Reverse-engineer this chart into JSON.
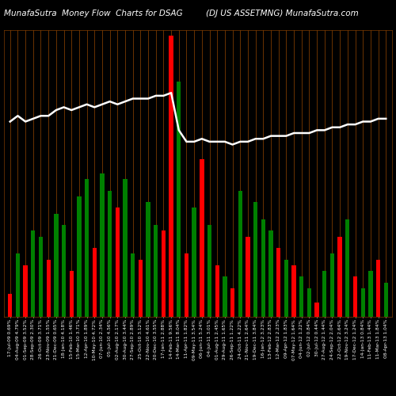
{
  "title_left": "MunafaSutra  Money Flow  Charts for DSAG",
  "title_right": "(DJ US ASSETMNG) MunafaSutra.com",
  "background_color": "#000000",
  "grid_color": "#7B3A00",
  "bar_colors": [
    "red",
    "green",
    "red",
    "green",
    "green",
    "red",
    "green",
    "green",
    "red",
    "green",
    "green",
    "red",
    "green",
    "green",
    "red",
    "green",
    "green",
    "red",
    "green",
    "green",
    "red",
    "red",
    "green",
    "red",
    "green",
    "red",
    "green",
    "red",
    "green",
    "red",
    "green",
    "red",
    "green",
    "green",
    "green",
    "red",
    "green",
    "red",
    "green",
    "green",
    "red",
    "green",
    "green",
    "red",
    "green",
    "red",
    "green",
    "green",
    "red",
    "green"
  ],
  "bar_values": [
    8,
    22,
    18,
    30,
    28,
    20,
    36,
    32,
    16,
    42,
    48,
    24,
    50,
    44,
    38,
    48,
    22,
    20,
    40,
    32,
    30,
    98,
    82,
    22,
    38,
    55,
    32,
    18,
    14,
    10,
    44,
    28,
    40,
    34,
    30,
    24,
    20,
    18,
    14,
    10,
    5,
    16,
    22,
    28,
    34,
    14,
    10,
    16,
    20,
    12
  ],
  "line_values": [
    68,
    70,
    68,
    69,
    70,
    70,
    72,
    73,
    72,
    73,
    74,
    73,
    74,
    75,
    74,
    75,
    76,
    76,
    76,
    77,
    77,
    78,
    65,
    61,
    61,
    62,
    61,
    61,
    61,
    60,
    61,
    61,
    62,
    62,
    63,
    63,
    63,
    64,
    64,
    64,
    65,
    65,
    66,
    66,
    67,
    67,
    68,
    68,
    69,
    69
  ],
  "xlabels": [
    "17-Jul-09 0.69%",
    "04-Aug-09 4.79%",
    "01-Sep-09 3.52%",
    "28-Sep-09 2.30%",
    "26-Oct-09 3.71%",
    "23-Nov-09 1.55%",
    "21-Dec-09 0.65%",
    "18-Jan-10 4.18%",
    "15-Feb-10 1.46%",
    "15-Mar-10 3.71%",
    "12-Apr-10 1.89%",
    "10-May-10 4.72%",
    "07-Jun-10 2.34%",
    "05-Jul-10 4.56%",
    "02-Aug-10 2.17%",
    "30-Aug-10 3.44%",
    "27-Sep-10 2.89%",
    "25-Oct-10 3.12%",
    "22-Nov-10 4.61%",
    "20-Dec-10 3.55%",
    "17-Jan-11 2.88%",
    "14-Feb-11 9.56%",
    "14-Mar-11 8.04%",
    "11-Apr-11 1.82%",
    "09-May-11 3.54%",
    "06-Jun-11 5.24%",
    "04-Jul-11 3.01%",
    "01-Aug-11 2.45%",
    "29-Aug-11 1.65%",
    "26-Sep-11 1.22%",
    "24-Oct-11 4.22%",
    "21-Nov-11 2.64%",
    "19-Dec-11 3.84%",
    "16-Jan-12 3.23%",
    "13-Feb-12 2.83%",
    "12-Mar-12 2.23%",
    "09-Apr-12 1.83%",
    "07-May-12 1.64%",
    "04-Jun-12 1.22%",
    "02-Jul-12 0.84%",
    "30-Jul-12 0.44%",
    "27-Aug-12 1.44%",
    "24-Sep-12 2.04%",
    "22-Oct-12 2.64%",
    "19-Nov-12 3.24%",
    "17-Dec-12 1.24%",
    "14-Jan-13 0.84%",
    "11-Feb-13 1.44%",
    "11-Mar-13 1.84%",
    "08-Apr-13 1.04%"
  ],
  "ylim": [
    0,
    100
  ],
  "title_fontsize": 7.5,
  "label_fontsize": 4.2
}
